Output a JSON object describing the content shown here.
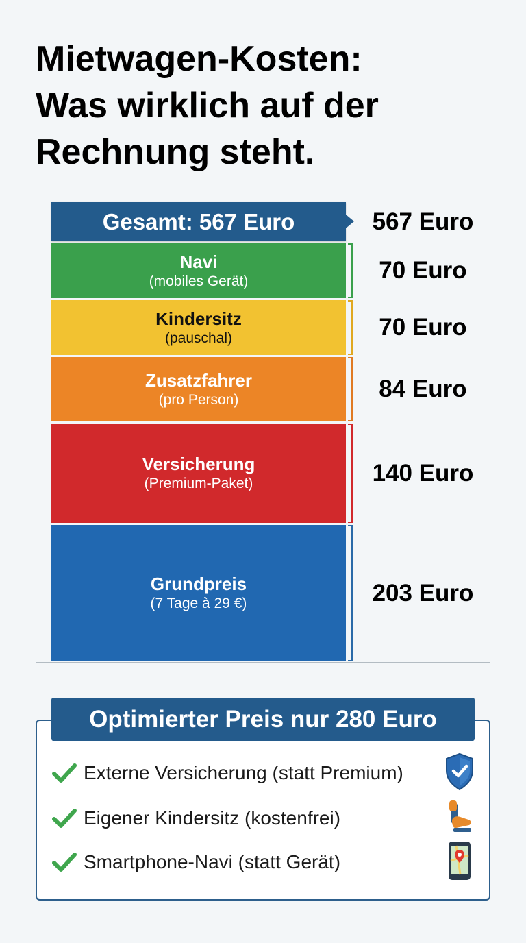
{
  "title": {
    "line1": "Mietwagen-Kosten:",
    "line2": "Was wirklich auf der",
    "line3": "Rechnung steht."
  },
  "chart_data": {
    "type": "bar",
    "stacked": true,
    "total": {
      "label": "Gesamt: 567 Euro",
      "value": 567,
      "value_label": "567 Euro"
    },
    "unit": "Euro",
    "segments": [
      {
        "name": "Navi",
        "sub": "(mobiles Gerät)",
        "value": 70,
        "value_label": "70 Euro",
        "color": "#3aa04c",
        "text_color": "#ffffff",
        "bracket_color": "#3aa04c"
      },
      {
        "name": "Kindersitz",
        "sub": "(pauschal)",
        "value": 70,
        "value_label": "70 Euro",
        "color": "#f2c231",
        "text_color": "#111111",
        "bracket_color": "#e0a820"
      },
      {
        "name": "Zusatzfahrer",
        "sub": "(pro Person)",
        "value": 84,
        "value_label": "84 Euro",
        "color": "#ec8526",
        "text_color": "#ffffff",
        "bracket_color": "#e07a22"
      },
      {
        "name": "Versicherung",
        "sub": "(Premium-Paket)",
        "value": 140,
        "value_label": "140 Euro",
        "color": "#d1292c",
        "text_color": "#ffffff",
        "bracket_color": "#d1292c"
      },
      {
        "name": "Grundpreis",
        "sub": "(7 Tage à 29 €)",
        "value": 203,
        "value_label": "203 Euro",
        "color": "#2168b1",
        "text_color": "#ffffff",
        "bracket_color": "#2a6aa8"
      }
    ]
  },
  "optimized": {
    "title": "Optimierter Preis nur 280 Euro",
    "items": [
      {
        "text": "Externe Versicherung (statt Premium)",
        "icon": "shield-check-icon"
      },
      {
        "text": "Eigener Kindersitz (kostenfrei)",
        "icon": "child-seat-icon"
      },
      {
        "text": "Smartphone-Navi (statt Gerät)",
        "icon": "smartphone-map-icon"
      }
    ],
    "check_color": "#3fa64d",
    "accent": "#245b8c"
  }
}
